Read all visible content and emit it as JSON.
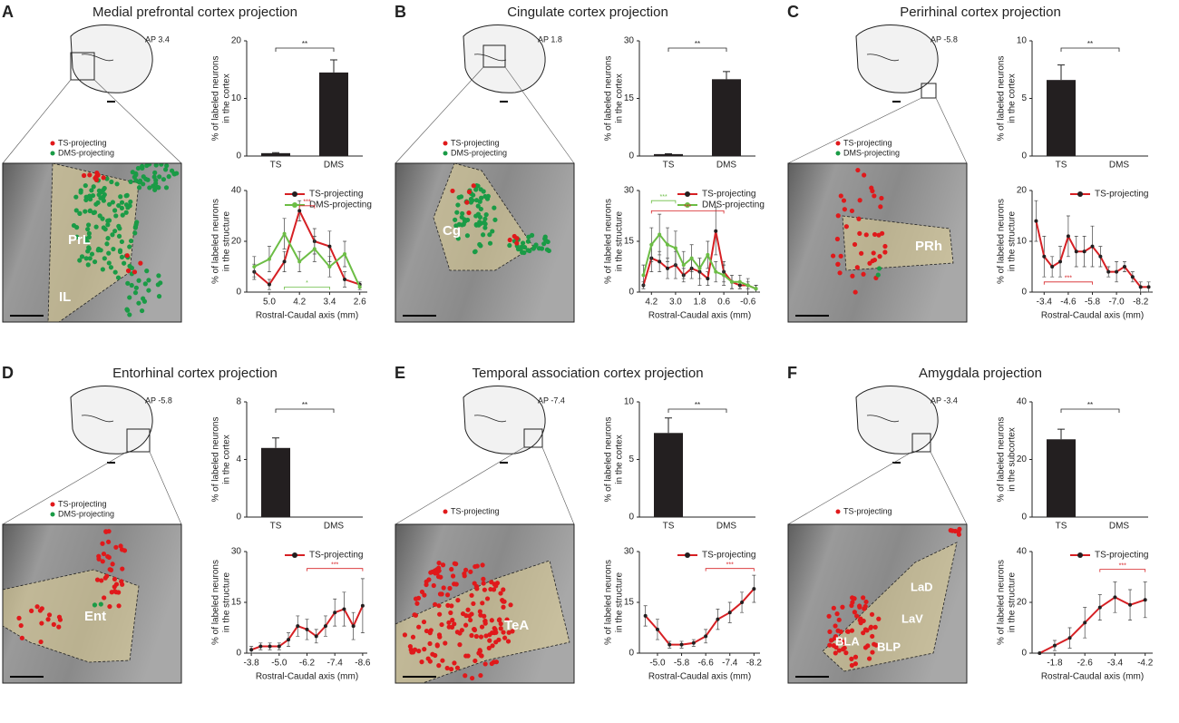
{
  "panels": [
    {
      "letter": "A",
      "title": "Medial prefrontal cortex projection",
      "ap": "AP 3.4",
      "regions": [
        "PrL",
        "IL"
      ],
      "photo_legend": [
        {
          "name": "TS-projecting",
          "color": "#e0191b"
        },
        {
          "name": "DMS-projecting",
          "color": "#1a9b46"
        }
      ],
      "bar_chart": {
        "type": "bar",
        "ylabel": [
          "% of labeled neurons",
          "in the cortex"
        ],
        "categories": [
          "TS",
          "DMS"
        ],
        "values": [
          0.5,
          14.5
        ],
        "errors": [
          0.1,
          2.2
        ],
        "color": "#231f20",
        "ylim": [
          0,
          20
        ],
        "yticks": [
          0,
          10,
          20
        ],
        "significance": "**"
      },
      "line_chart": {
        "type": "line",
        "xlabel": "Rostral-Caudal axis (mm)",
        "ylabel": [
          "% of labeled neurons",
          "in the structure"
        ],
        "x": [
          5.4,
          5.0,
          4.6,
          4.2,
          3.8,
          3.4,
          3.0,
          2.6
        ],
        "xlim": [
          5.6,
          2.4
        ],
        "xticks": [
          {
            "value": 5,
            "label": "5.0"
          },
          4.2,
          3.4,
          2.6
        ],
        "ylim": [
          0,
          40
        ],
        "yticks": [
          0,
          20,
          40
        ],
        "series": [
          {
            "name": "TS-projecting",
            "color": "#d62024",
            "marker_color": "#231f20",
            "values": [
              8,
              3,
              12,
              32,
              20,
              18,
              5,
              3
            ],
            "errors": [
              3,
              2,
              4,
              4,
              5,
              6,
              3,
              1
            ]
          },
          {
            "name": "DMS-projecting",
            "color": "#6cbd45",
            "marker_color": "#6cbd45",
            "values": [
              10,
              13,
              23,
              12,
              17,
              10,
              15,
              2
            ],
            "errors": [
              4,
              5,
              6,
              4,
              5,
              4,
              5,
              1
            ]
          }
        ],
        "annotations": [
          {
            "text": "***",
            "from": 4.2,
            "to": 3.8,
            "y": 34,
            "color": "#d62024"
          },
          {
            "text": "*",
            "from": 4.6,
            "to": 3.4,
            "y": 2,
            "color": "#6cbd45"
          }
        ]
      }
    },
    {
      "letter": "B",
      "title": "Cingulate cortex projection",
      "ap": "AP 1.8",
      "regions": [
        "Cg"
      ],
      "photo_legend": [
        {
          "name": "TS-projecting",
          "color": "#e0191b"
        },
        {
          "name": "DMS-projecting",
          "color": "#1a9b46"
        }
      ],
      "bar_chart": {
        "type": "bar",
        "ylabel": [
          "% of labeled neurons",
          "in the cortex"
        ],
        "categories": [
          "TS",
          "DMS"
        ],
        "values": [
          0.5,
          20
        ],
        "errors": [
          0.1,
          2
        ],
        "color": "#231f20",
        "ylim": [
          0,
          30
        ],
        "yticks": [
          0,
          15,
          30
        ],
        "significance": "**"
      },
      "line_chart": {
        "type": "line",
        "xlabel": "Rostral-Caudal axis (mm)",
        "ylabel": [
          "% of labeled neurons",
          "in the structure"
        ],
        "x": [
          4.6,
          4.2,
          3.8,
          3.4,
          3.0,
          2.6,
          2.2,
          1.8,
          1.4,
          1.0,
          0.6,
          0.2,
          -0.2,
          -0.6,
          -1.0
        ],
        "xlim": [
          4.8,
          -1.2
        ],
        "xticks": [
          4.2,
          {
            "value": 3,
            "label": "3.0"
          },
          1.8,
          0.6,
          -0.6
        ],
        "ylim": [
          0,
          30
        ],
        "yticks": [
          0,
          15,
          30
        ],
        "series": [
          {
            "name": "TS-projecting",
            "color": "#d62024",
            "marker_color": "#231f20",
            "values": [
              2,
              10,
              9,
              7,
              8,
              5,
              7,
              6,
              4,
              18,
              6,
              3,
              2,
              2,
              1
            ],
            "errors": [
              1,
              4,
              3,
              3,
              4,
              2,
              3,
              4,
              2,
              7,
              3,
              2,
              1,
              1,
              1
            ]
          },
          {
            "name": "DMS-projecting",
            "color": "#6cbd45",
            "marker_color": "#6cbd45",
            "values": [
              5,
              14,
              17,
              14,
              13,
              8,
              10,
              7,
              11,
              6,
              5,
              3,
              3,
              2,
              1
            ],
            "errors": [
              3,
              5,
              6,
              5,
              5,
              4,
              4,
              3,
              4,
              3,
              3,
              2,
              2,
              2,
              1
            ]
          }
        ],
        "annotations": [
          {
            "text": "***",
            "from": 4.2,
            "to": 3.0,
            "y": 27,
            "color": "#6cbd45"
          },
          {
            "text": "***",
            "from": 4.2,
            "to": 0.6,
            "y": 24,
            "color": "#d62024"
          }
        ]
      }
    },
    {
      "letter": "C",
      "title": "Perirhinal cortex projection",
      "ap": "AP -5.8",
      "regions": [
        "PRh"
      ],
      "photo_legend": [
        {
          "name": "TS-projecting",
          "color": "#e0191b"
        },
        {
          "name": "DMS-projecting",
          "color": "#1a9b46"
        }
      ],
      "bar_chart": {
        "type": "bar",
        "ylabel": [
          "% of labeled neurons",
          "in the cortex"
        ],
        "categories": [
          "TS",
          "DMS"
        ],
        "values": [
          6.6,
          0
        ],
        "errors": [
          1.3,
          0
        ],
        "color": "#231f20",
        "ylim": [
          0,
          10
        ],
        "yticks": [
          0,
          5,
          10
        ],
        "significance": "**"
      },
      "line_chart": {
        "type": "line",
        "xlabel": "Rostral-Caudal axis (mm)",
        "ylabel": [
          "% of labeled neurons",
          "in the structure"
        ],
        "x": [
          -3.0,
          -3.4,
          -3.8,
          -4.2,
          -4.6,
          -5.0,
          -5.4,
          -5.8,
          -6.2,
          -6.6,
          -7.0,
          -7.4,
          -7.8,
          -8.2,
          -8.6
        ],
        "xlim": [
          -2.8,
          -8.8
        ],
        "xticks": [
          -3.4,
          -4.6,
          -5.8,
          {
            "value": -7,
            "label": "-7.0"
          },
          -8.2
        ],
        "ylim": [
          0,
          20
        ],
        "yticks": [
          0,
          10,
          20
        ],
        "series": [
          {
            "name": "TS-projecting",
            "color": "#d62024",
            "marker_color": "#231f20",
            "values": [
              14,
              7,
              5,
              6,
              11,
              8,
              8,
              9,
              7,
              4,
              4,
              5,
              3,
              1,
              1
            ],
            "errors": [
              4,
              4,
              2,
              3,
              4,
              3,
              3,
              4,
              2,
              1,
              2,
              1,
              1,
              1,
              1
            ]
          }
        ],
        "annotations": [
          {
            "text": "***",
            "from": -3.4,
            "to": -5.8,
            "y": 2,
            "color": "#d62024"
          }
        ]
      }
    },
    {
      "letter": "D",
      "title": "Entorhinal cortex projection",
      "ap": "AP -5.8",
      "regions": [
        "Ent"
      ],
      "photo_legend": [
        {
          "name": "TS-projecting",
          "color": "#e0191b"
        },
        {
          "name": "DMS-projecting",
          "color": "#1a9b46"
        }
      ],
      "bar_chart": {
        "type": "bar",
        "ylabel": [
          "% of labeled neurons",
          "in the cortex"
        ],
        "categories": [
          "TS",
          "DMS"
        ],
        "values": [
          4.8,
          0
        ],
        "errors": [
          0.7,
          0
        ],
        "color": "#231f20",
        "ylim": [
          0,
          8
        ],
        "yticks": [
          0,
          4,
          8
        ],
        "significance": "**"
      },
      "line_chart": {
        "type": "line",
        "xlabel": "Rostral-Caudal axis (mm)",
        "ylabel": [
          "% of labeled neurons",
          "in the structure"
        ],
        "x": [
          -3.8,
          -4.2,
          -4.6,
          -5.0,
          -5.4,
          -5.8,
          -6.2,
          -6.6,
          -7.0,
          -7.4,
          -7.8,
          -8.2,
          -8.6
        ],
        "xlim": [
          -3.6,
          -8.8
        ],
        "xticks": [
          -3.8,
          {
            "value": -5,
            "label": "-5.0"
          },
          -6.2,
          -7.4,
          -8.6
        ],
        "ylim": [
          0,
          30
        ],
        "yticks": [
          0,
          15,
          30
        ],
        "series": [
          {
            "name": "TS-projecting",
            "color": "#d62024",
            "marker_color": "#231f20",
            "values": [
              1,
              2,
              2,
              2,
              4,
              8,
              7,
              5,
              8,
              12,
              13,
              8,
              14
            ],
            "errors": [
              1,
              1,
              1,
              1,
              2,
              3,
              3,
              2,
              3,
              4,
              5,
              4,
              8
            ]
          }
        ],
        "annotations": [
          {
            "text": "***",
            "from": -6.2,
            "to": -8.6,
            "y": 25,
            "color": "#d62024"
          }
        ]
      }
    },
    {
      "letter": "E",
      "title": "Temporal association cortex projection",
      "ap": "AP -7.4",
      "regions": [
        "TeA"
      ],
      "photo_legend": [
        {
          "name": "TS-projecting",
          "color": "#e0191b"
        }
      ],
      "bar_chart": {
        "type": "bar",
        "ylabel": [
          "% of labeled neurons",
          "in the cortex"
        ],
        "categories": [
          "TS",
          "DMS"
        ],
        "values": [
          7.3,
          0
        ],
        "errors": [
          1.3,
          0
        ],
        "color": "#231f20",
        "ylim": [
          0,
          10
        ],
        "yticks": [
          0,
          5,
          10
        ],
        "significance": "**"
      },
      "line_chart": {
        "type": "line",
        "xlabel": "Rostral-Caudal axis (mm)",
        "ylabel": [
          "% of labeled neurons",
          "in the structure"
        ],
        "x": [
          -4.6,
          -5.0,
          -5.4,
          -5.8,
          -6.2,
          -6.6,
          -7.0,
          -7.4,
          -7.8,
          -8.2
        ],
        "xlim": [
          -4.4,
          -8.4
        ],
        "xticks": [
          {
            "value": -5,
            "label": "-5.0"
          },
          -5.8,
          -6.6,
          -7.4,
          -8.2
        ],
        "ylim": [
          0,
          30
        ],
        "yticks": [
          0,
          15,
          30
        ],
        "series": [
          {
            "name": "TS-projecting",
            "color": "#d62024",
            "marker_color": "#231f20",
            "values": [
              11,
              7,
              2.5,
              2.5,
              3,
              5,
              10,
              12,
              15,
              19
            ],
            "errors": [
              3,
              3,
              1,
              1,
              1,
              2,
              3,
              3,
              3,
              4
            ]
          }
        ],
        "annotations": [
          {
            "text": "***",
            "from": -6.6,
            "to": -8.2,
            "y": 25,
            "color": "#d62024"
          }
        ]
      }
    },
    {
      "letter": "F",
      "title": "Amygdala projection",
      "ap": "AP -3.4",
      "regions": [
        "LaD",
        "LaV",
        "BLA",
        "BLP"
      ],
      "photo_legend": [
        {
          "name": "TS-projecting",
          "color": "#e0191b"
        }
      ],
      "bar_chart": {
        "type": "bar",
        "ylabel": [
          "% of labeled neurons",
          "in the subcortex"
        ],
        "categories": [
          "TS",
          "DMS"
        ],
        "values": [
          27,
          0
        ],
        "errors": [
          3.5,
          0
        ],
        "color": "#231f20",
        "ylim": [
          0,
          40
        ],
        "yticks": [
          0,
          20,
          40
        ],
        "significance": "**"
      },
      "line_chart": {
        "type": "line",
        "xlabel": "Rostral-Caudal axis (mm)",
        "ylabel": [
          "% of labeled neurons",
          "in the structure"
        ],
        "x": [
          -1.4,
          -1.8,
          -2.2,
          -2.6,
          -3.0,
          -3.4,
          -3.8,
          -4.2
        ],
        "xlim": [
          -1.2,
          -4.4
        ],
        "xticks": [
          -1.8,
          -2.6,
          -3.4,
          -4.2
        ],
        "ylim": [
          0,
          40
        ],
        "yticks": [
          0,
          20,
          40
        ],
        "series": [
          {
            "name": "TS-projecting",
            "color": "#d62024",
            "marker_color": "#231f20",
            "values": [
              0,
              3,
              6,
              12,
              18,
              22,
              19,
              21
            ],
            "errors": [
              0,
              2,
              4,
              6,
              5,
              6,
              6,
              7
            ]
          }
        ],
        "annotations": [
          {
            "text": "***",
            "from": -3.0,
            "to": -4.2,
            "y": 33,
            "color": "#d62024"
          }
        ]
      }
    }
  ]
}
